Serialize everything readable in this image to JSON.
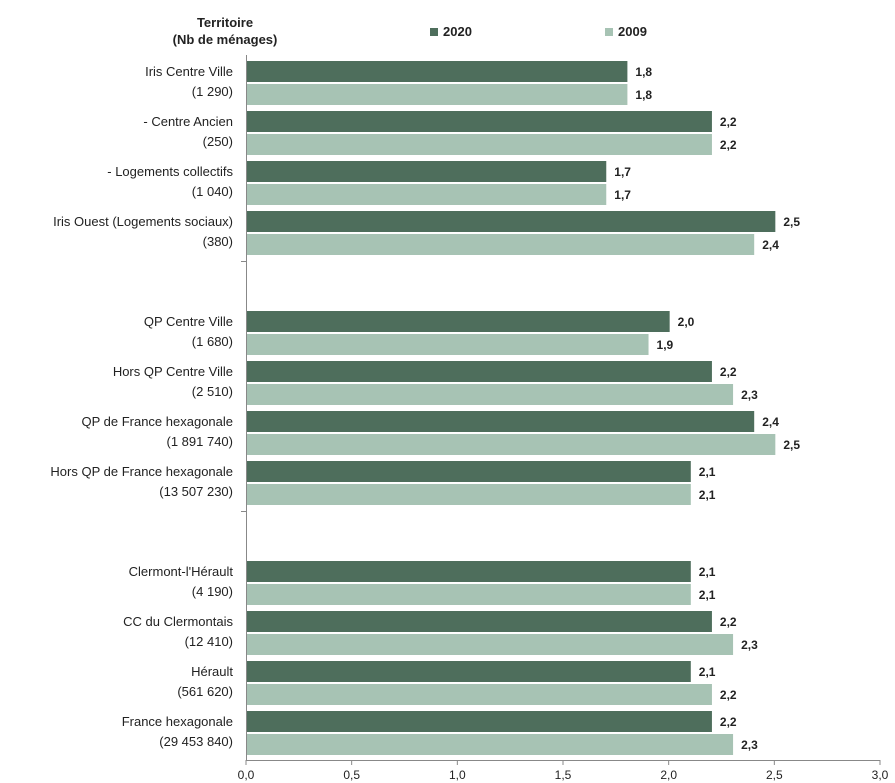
{
  "header": {
    "title_line1": "Territoire",
    "title_line2": "(Nb de ménages)"
  },
  "legend": [
    {
      "name": "2020",
      "color": "#4e6e5c"
    },
    {
      "name": "2009",
      "color": "#a7c3b4"
    }
  ],
  "chart_data": {
    "type": "bar",
    "orientation": "horizontal",
    "categories": [
      {
        "name": "Iris Centre Ville",
        "count": "(1 290)"
      },
      {
        "name": "- Centre Ancien",
        "count": "(250)"
      },
      {
        "name": "- Logements collectifs",
        "count": "(1 040)"
      },
      {
        "name": "Iris Ouest (Logements sociaux)",
        "count": "(380)"
      },
      {
        "name": "QP Centre Ville",
        "count": "(1 680)"
      },
      {
        "name": "Hors QP Centre Ville",
        "count": "(2 510)"
      },
      {
        "name": "QP de France hexagonale",
        "count": "(1 891 740)"
      },
      {
        "name": "Hors QP de France hexagonale",
        "count": "(13 507 230)"
      },
      {
        "name": "Clermont-l'Hérault",
        "count": "(4 190)"
      },
      {
        "name": "CC du Clermontais",
        "count": "(12 410)"
      },
      {
        "name": "Hérault",
        "count": "(561 620)"
      },
      {
        "name": "France hexagonale",
        "count": "(29 453 840)"
      }
    ],
    "groups": [
      [
        0,
        1,
        2,
        3
      ],
      [
        4,
        5,
        6,
        7
      ],
      [
        8,
        9,
        10,
        11
      ]
    ],
    "series": [
      {
        "name": "2020",
        "color": "#4e6e5c",
        "values": [
          1.8,
          2.2,
          1.7,
          2.5,
          2.0,
          2.2,
          2.4,
          2.1,
          2.1,
          2.2,
          2.1,
          2.2
        ],
        "labels": [
          "1,8",
          "2,2",
          "1,7",
          "2,5",
          "2,0",
          "2,2",
          "2,4",
          "2,1",
          "2,1",
          "2,2",
          "2,1",
          "2,2"
        ]
      },
      {
        "name": "2009",
        "color": "#a7c3b4",
        "values": [
          1.8,
          2.2,
          1.7,
          2.4,
          1.9,
          2.3,
          2.5,
          2.1,
          2.1,
          2.3,
          2.2,
          2.3
        ],
        "labels": [
          "1,8",
          "2,2",
          "1,7",
          "2,4",
          "1,9",
          "2,3",
          "2,5",
          "2,1",
          "2,1",
          "2,3",
          "2,2",
          "2,3"
        ]
      }
    ],
    "xlim": [
      0,
      3.0
    ],
    "x_ticks": [
      0,
      0.5,
      1.0,
      1.5,
      2.0,
      2.5,
      3.0
    ],
    "x_tick_labels": [
      "0,0",
      "0,5",
      "1,0",
      "1,5",
      "2,0",
      "2,5",
      "3,0"
    ],
    "grid": false,
    "legend_position": "top"
  }
}
